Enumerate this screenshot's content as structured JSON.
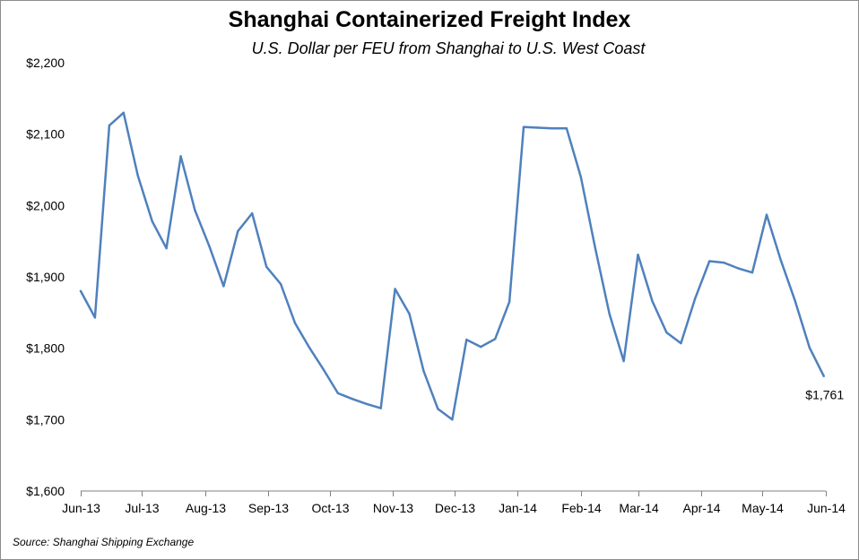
{
  "chart_data": {
    "type": "line",
    "title": "Shanghai Containerized Freight Index",
    "subtitle": "U.S. Dollar per FEU from Shanghai to U.S. West Coast",
    "source": "Source: Shanghai Shipping Exchange",
    "xlabel": "",
    "ylabel": "",
    "ylim": [
      1600,
      2200
    ],
    "y_ticks": [
      1600,
      1700,
      1800,
      1900,
      2000,
      2100,
      2200
    ],
    "y_tick_labels": [
      "$1,600",
      "$1,700",
      "$1,800",
      "$1,900",
      "$2,000",
      "$2,100",
      "$2,200"
    ],
    "x_tick_labels": [
      "Jun-13",
      "Jul-13",
      "Aug-13",
      "Sep-13",
      "Oct-13",
      "Nov-13",
      "Dec-13",
      "Jan-14",
      "Feb-14",
      "Mar-14",
      "Apr-14",
      "May-14",
      "Jun-14"
    ],
    "x_tick_dates": [
      "2013-06-01",
      "2013-07-01",
      "2013-08-01",
      "2013-09-01",
      "2013-10-01",
      "2013-11-01",
      "2013-12-01",
      "2014-01-01",
      "2014-02-01",
      "2014-03-01",
      "2014-04-01",
      "2014-05-01",
      "2014-06-01"
    ],
    "grid": false,
    "legend": "none",
    "line_color": "#4f81bd",
    "series": [
      {
        "x": [
          "2013-06-01",
          "2013-06-08",
          "2013-06-15",
          "2013-06-22",
          "2013-06-29",
          "2013-07-06",
          "2013-07-13",
          "2013-07-20",
          "2013-07-27",
          "2013-08-03",
          "2013-08-10",
          "2013-08-17",
          "2013-08-24",
          "2013-08-31",
          "2013-09-07",
          "2013-09-14",
          "2013-09-21",
          "2013-09-28",
          "2013-10-05",
          "2013-10-12",
          "2013-10-19",
          "2013-10-26",
          "2013-11-02",
          "2013-11-09",
          "2013-11-16",
          "2013-11-23",
          "2013-11-30",
          "2013-12-07",
          "2013-12-14",
          "2013-12-21",
          "2013-12-28",
          "2014-01-04",
          "2014-01-11",
          "2014-01-18",
          "2014-01-25",
          "2014-02-01",
          "2014-02-08",
          "2014-02-15",
          "2014-02-22",
          "2014-03-01",
          "2014-03-08",
          "2014-03-15",
          "2014-03-22",
          "2014-03-29",
          "2014-04-05",
          "2014-04-12",
          "2014-04-19",
          "2014-04-26",
          "2014-05-03",
          "2014-05-10",
          "2014-05-17",
          "2014-05-24",
          "2014-05-31"
        ],
        "values": [
          1880,
          1843,
          2112,
          2130,
          2042,
          1978,
          1940,
          2069,
          1993,
          1943,
          1887,
          1964,
          1989,
          1914,
          1890,
          1835,
          1801,
          1770,
          1737,
          1729,
          1722,
          1716,
          1883,
          1848,
          1768,
          1715,
          1700,
          1812,
          1802,
          1813,
          1865,
          2110,
          2109,
          2108,
          2108,
          2040,
          1941,
          1848,
          1782,
          1931,
          1866,
          1822,
          1807,
          1870,
          1922,
          1920,
          1912,
          1906,
          1987,
          1923,
          1866,
          1801,
          1761
        ]
      }
    ],
    "annotations": [
      {
        "text": "$1,761",
        "x": "2014-05-31",
        "y": 1761
      }
    ]
  }
}
